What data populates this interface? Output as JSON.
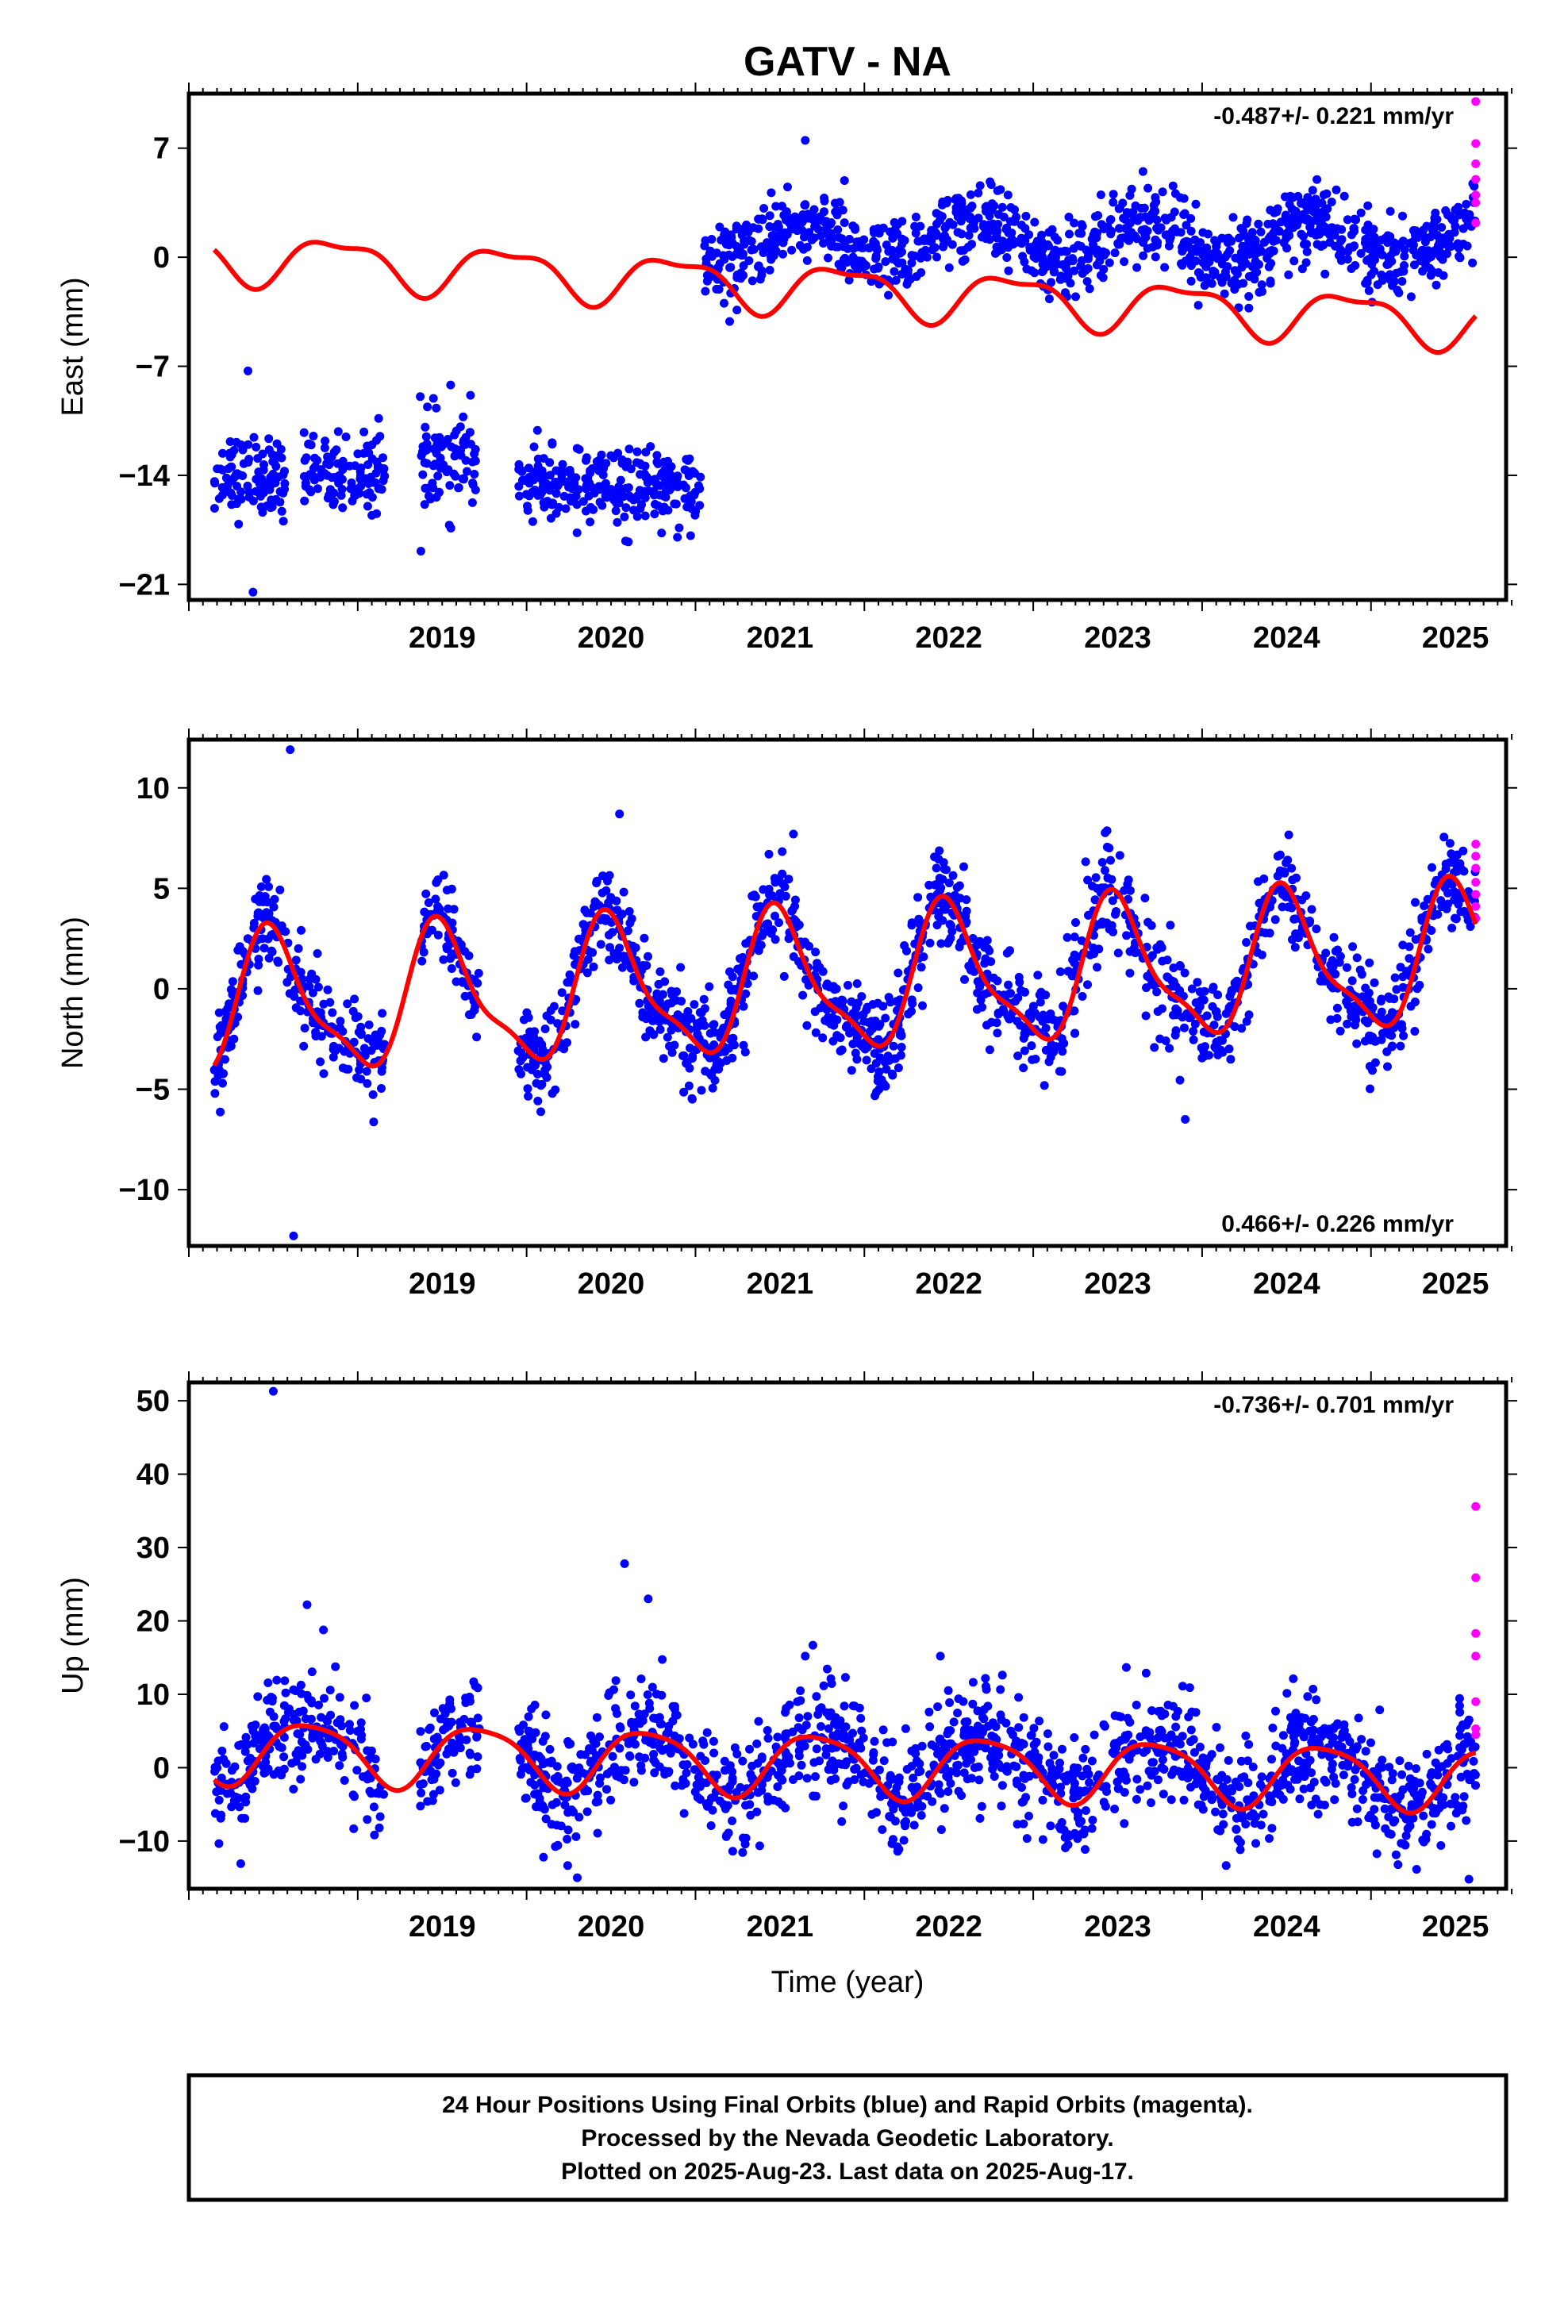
{
  "title": "GATV - NA",
  "colors": {
    "final": "#0000ff",
    "rapid": "#ff00ff",
    "model": "#ff0000"
  },
  "xaxis": {
    "label": "Time (year)",
    "ticks": [
      "2019",
      "2020",
      "2021",
      "2022",
      "2023",
      "2024",
      "2025"
    ],
    "range": [
      2018.0,
      2025.8
    ]
  },
  "footer": {
    "line1": "24 Hour Positions Using Final Orbits (blue) and Rapid Orbits (magenta).",
    "line2": "Processed by the Nevada Geodetic Laboratory.",
    "line3": "Plotted on 2025-Aug-23. Last data on 2025-Aug-17."
  },
  "chart_data": [
    {
      "type": "scatter",
      "name": "east",
      "ylabel": "East (mm)",
      "rate": "-0.487+/- 0.221 mm/yr",
      "rate_position": "top-right",
      "yticks": [
        "7",
        "0",
        "−7",
        "−14",
        "−21"
      ],
      "ytick_values": [
        7,
        0,
        -7,
        -14,
        -21
      ],
      "ylim": [
        -22,
        10.5
      ],
      "xlim": [
        2018.0,
        2025.8
      ],
      "series": [
        {
          "name": "Final Orbits (blue)",
          "color": "#0000ff",
          "segments": [
            {
              "start": 2018.15,
              "end": 2018.57,
              "level": -14.0,
              "spread": 1.3
            },
            {
              "start": 2018.68,
              "end": 2019.16,
              "level": -13.8,
              "spread": 1.2
            },
            {
              "start": 2019.37,
              "end": 2019.72,
              "level": -13.3,
              "spread": 1.6
            },
            {
              "start": 2019.95,
              "end": 2021.03,
              "level": -14.8,
              "spread": 1.2
            },
            {
              "start": 2021.05,
              "end": 2025.62,
              "level": 1.0,
              "spread": 1.2,
              "season_amp": 1.2
            }
          ],
          "outliers": [
            [
              2018.35,
              -7.3
            ],
            [
              2018.38,
              -21.5
            ],
            [
              2019.55,
              -8.2
            ],
            [
              2018.18,
              -15.5
            ],
            [
              2021.65,
              7.5
            ],
            [
              2023.65,
              5.5
            ]
          ]
        },
        {
          "name": "Rapid Orbits (magenta)",
          "color": "#ff00ff",
          "points": [
            [
              2025.62,
              10.0
            ],
            [
              2025.62,
              7.3
            ],
            [
              2025.62,
              6.0
            ],
            [
              2025.62,
              5.0
            ],
            [
              2025.62,
              4.0
            ],
            [
              2025.62,
              3.5
            ],
            [
              2025.62,
              2.2
            ]
          ]
        },
        {
          "name": "model",
          "color": "#ff0000",
          "type": "line",
          "offset_start": 0.2,
          "offset_end": -4.3,
          "annual_amp": 1.5,
          "annual_phase": 2018.88,
          "semi_amp": 0.55,
          "semi_phase": 2018.65
        }
      ]
    },
    {
      "type": "scatter",
      "name": "north",
      "ylabel": "North (mm)",
      "rate": "0.466+/- 0.226 mm/yr",
      "rate_position": "bottom-right",
      "yticks": [
        "10",
        "5",
        "0",
        "−5",
        "−10"
      ],
      "ytick_values": [
        10,
        5,
        0,
        -5,
        -10
      ],
      "ylim": [
        -12.8,
        12.4
      ],
      "xlim": [
        2018.0,
        2025.8
      ],
      "series": [
        {
          "name": "Final Orbits (blue)",
          "color": "#0000ff",
          "segments": [
            {
              "start": 2018.15,
              "end": 2019.16,
              "spread": 1.2
            },
            {
              "start": 2019.37,
              "end": 2019.72,
              "spread": 1.1
            },
            {
              "start": 2019.95,
              "end": 2025.62,
              "spread": 1.2
            }
          ],
          "outliers": [
            [
              2018.6,
              11.9
            ],
            [
              2018.62,
              -12.3
            ],
            [
              2020.55,
              8.7
            ],
            [
              2021.58,
              7.7
            ],
            [
              2023.9,
              -6.5
            ]
          ]
        },
        {
          "name": "Rapid Orbits (magenta)",
          "color": "#ff00ff",
          "points": [
            [
              2025.62,
              7.2
            ],
            [
              2025.62,
              6.6
            ],
            [
              2025.62,
              6.0
            ],
            [
              2025.62,
              5.3
            ],
            [
              2025.62,
              4.7
            ],
            [
              2025.62,
              4.1
            ],
            [
              2025.62,
              3.5
            ]
          ]
        },
        {
          "name": "model",
          "color": "#ff0000",
          "type": "line",
          "offset_start": -1.0,
          "offset_end": 1.6,
          "annual_amp": 3.3,
          "annual_phase": 2018.5,
          "semi_amp": 1.0,
          "semi_phase": 2018.43
        }
      ]
    },
    {
      "type": "scatter",
      "name": "up",
      "ylabel": "Up (mm)",
      "rate": "-0.736+/- 0.701 mm/yr",
      "rate_position": "top-right",
      "yticks": [
        "50",
        "40",
        "30",
        "20",
        "10",
        "0",
        "−10"
      ],
      "ytick_values": [
        50,
        40,
        30,
        20,
        10,
        0,
        -10
      ],
      "ylim": [
        -16.5,
        52.5
      ],
      "xlim": [
        2018.0,
        2025.8
      ],
      "series": [
        {
          "name": "Final Orbits (blue)",
          "color": "#0000ff",
          "segments": [
            {
              "start": 2018.15,
              "end": 2019.16,
              "spread": 3.6
            },
            {
              "start": 2019.37,
              "end": 2019.72,
              "spread": 3.4
            },
            {
              "start": 2019.95,
              "end": 2025.62,
              "spread": 3.8
            }
          ],
          "outliers": [
            [
              2018.5,
              51.3
            ],
            [
              2020.58,
              27.8
            ],
            [
              2020.72,
              23.0
            ],
            [
              2018.7,
              22.2
            ],
            [
              2021.65,
              15.2
            ],
            [
              2022.45,
              15.2
            ],
            [
              2020.3,
              -15.0
            ],
            [
              2025.58,
              -15.2
            ],
            [
              2020.1,
              -12.2
            ]
          ]
        },
        {
          "name": "Rapid Orbits (magenta)",
          "color": "#ff00ff",
          "points": [
            [
              2025.62,
              35.6
            ],
            [
              2025.62,
              25.9
            ],
            [
              2025.62,
              18.3
            ],
            [
              2025.62,
              15.2
            ],
            [
              2025.62,
              9.0
            ],
            [
              2025.62,
              5.3
            ],
            [
              2025.62,
              4.5
            ]
          ]
        },
        {
          "name": "model",
          "color": "#ff0000",
          "type": "line",
          "offset_start": 2.5,
          "offset_end": -1.5,
          "annual_amp": 4.2,
          "annual_phase": 2018.72,
          "semi_amp": 0.8,
          "semi_phase": 2018.5
        }
      ]
    }
  ]
}
